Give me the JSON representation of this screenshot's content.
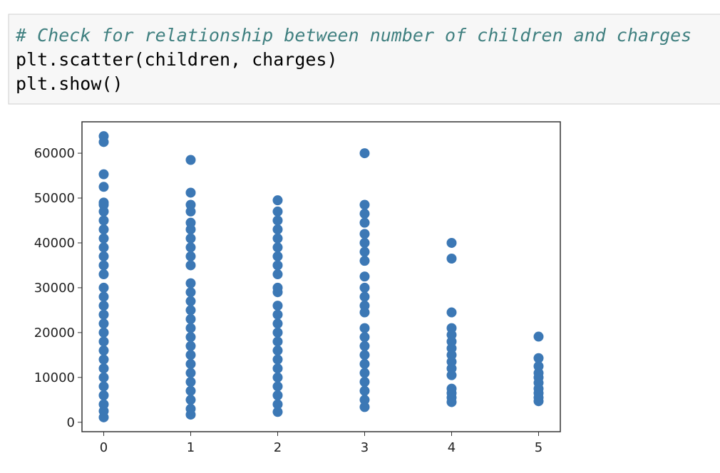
{
  "code": {
    "lines": [
      "# Check for relationship between number of children and charges",
      "plt.scatter(children, charges)",
      "plt.show()"
    ]
  },
  "chart_data": {
    "type": "scatter",
    "series": [
      {
        "color": "#3c78b5",
        "x": [
          0,
          0,
          0,
          0,
          0,
          0,
          0,
          0,
          0,
          0,
          0,
          0,
          0,
          0,
          0,
          0,
          0,
          0,
          0,
          0,
          0,
          0,
          0,
          0,
          0,
          0,
          0,
          0,
          0,
          0,
          1,
          1,
          1,
          1,
          1,
          1,
          1,
          1,
          1,
          1,
          1,
          1,
          1,
          1,
          1,
          1,
          1,
          1,
          1,
          1,
          1,
          1,
          1,
          1,
          1,
          1,
          2,
          2,
          2,
          2,
          2,
          2,
          2,
          2,
          2,
          2,
          2,
          2,
          2,
          2,
          2,
          2,
          2,
          2,
          2,
          2,
          2,
          2,
          2,
          2,
          3,
          3,
          3,
          3,
          3,
          3,
          3,
          3,
          3,
          3,
          3,
          3,
          3,
          3,
          3,
          3,
          3,
          3,
          3,
          3,
          3,
          3,
          3,
          4,
          4,
          4,
          4,
          4,
          4,
          4,
          4,
          4,
          4,
          4,
          4,
          4,
          4,
          4,
          5,
          5,
          5,
          5,
          5,
          5,
          5,
          5,
          5,
          5
        ],
        "values": [
          1100,
          2500,
          4000,
          6000,
          8000,
          10000,
          12000,
          14000,
          16000,
          18000,
          20000,
          22000,
          24000,
          26000,
          28000,
          30000,
          33000,
          35000,
          37000,
          39000,
          41000,
          43000,
          45000,
          47000,
          48500,
          49000,
          52500,
          55300,
          62500,
          63800,
          1700,
          3000,
          5000,
          7000,
          9000,
          11000,
          13000,
          15000,
          17000,
          19000,
          21000,
          23000,
          25000,
          27000,
          29000,
          31000,
          35000,
          37000,
          39000,
          41000,
          43000,
          44500,
          47000,
          48500,
          51200,
          58500,
          2300,
          4000,
          6000,
          8000,
          10000,
          12000,
          14000,
          16000,
          18000,
          20000,
          22000,
          24000,
          26000,
          29000,
          30000,
          33000,
          35000,
          37000,
          39000,
          41000,
          43000,
          45000,
          47000,
          49500,
          3400,
          5000,
          7000,
          9000,
          11000,
          13000,
          15000,
          17000,
          19000,
          21000,
          24500,
          26000,
          28000,
          30000,
          32500,
          36000,
          38000,
          40000,
          42000,
          44500,
          46500,
          48500,
          60000,
          4500,
          5500,
          6500,
          7500,
          10500,
          12000,
          13500,
          15000,
          16500,
          18000,
          19500,
          21000,
          24500,
          36500,
          40000,
          4700,
          5500,
          6500,
          7500,
          8800,
          10000,
          11000,
          12500,
          14300,
          19100
        ]
      }
    ],
    "xlim": [
      -0.25,
      5.25
    ],
    "xticks": [
      0,
      1,
      2,
      3,
      4,
      5
    ],
    "ylim": [
      -2100,
      67000
    ],
    "yticks": [
      0,
      10000,
      20000,
      30000,
      40000,
      50000,
      60000
    ]
  }
}
